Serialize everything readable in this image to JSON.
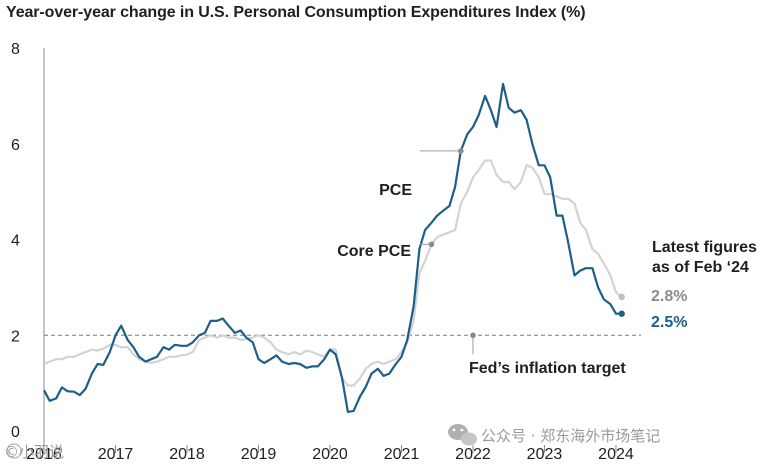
{
  "chart_data": {
    "type": "line",
    "title": "Year-over-year change in U.S. Personal Consumption Expenditures Index (%)",
    "xlabel": "",
    "ylabel": "",
    "ylim": [
      0,
      8
    ],
    "xlim": [
      2016.0,
      2024.35
    ],
    "y_ticks": [
      "0",
      "2",
      "4",
      "6",
      "8"
    ],
    "x_ticks": [
      "2016",
      "2017",
      "2018",
      "2019",
      "2020",
      "2021",
      "2022",
      "2023",
      "2024"
    ],
    "grid": false,
    "target": {
      "value": 2,
      "label": "Fed’s inflation target",
      "x_marker": 2022.0
    },
    "annotations": {
      "pce": "PCE",
      "core_pce": "Core PCE",
      "latest_line1": "Latest figures",
      "latest_line2": "as of Feb ‘24",
      "latest_pce": "2.5%",
      "latest_core": "2.8%"
    },
    "series": [
      {
        "name": "PCE",
        "color": "#1c5f8a",
        "x": [
          2016.0,
          2016.08,
          2016.17,
          2016.25,
          2016.33,
          2016.42,
          2016.5,
          2016.58,
          2016.67,
          2016.75,
          2016.83,
          2016.92,
          2017.0,
          2017.08,
          2017.17,
          2017.25,
          2017.33,
          2017.42,
          2017.5,
          2017.58,
          2017.67,
          2017.75,
          2017.83,
          2017.92,
          2018.0,
          2018.08,
          2018.17,
          2018.25,
          2018.33,
          2018.42,
          2018.5,
          2018.58,
          2018.67,
          2018.75,
          2018.83,
          2018.92,
          2019.0,
          2019.08,
          2019.17,
          2019.25,
          2019.33,
          2019.42,
          2019.5,
          2019.58,
          2019.67,
          2019.75,
          2019.83,
          2019.92,
          2020.0,
          2020.08,
          2020.17,
          2020.25,
          2020.33,
          2020.42,
          2020.5,
          2020.58,
          2020.67,
          2020.75,
          2020.83,
          2020.92,
          2021.0,
          2021.08,
          2021.17,
          2021.25,
          2021.33,
          2021.42,
          2021.5,
          2021.58,
          2021.67,
          2021.75,
          2021.83,
          2021.92,
          2022.0,
          2022.08,
          2022.17,
          2022.25,
          2022.33,
          2022.42,
          2022.5,
          2022.58,
          2022.67,
          2022.75,
          2022.83,
          2022.92,
          2023.0,
          2023.08,
          2023.17,
          2023.25,
          2023.33,
          2023.42,
          2023.5,
          2023.58,
          2023.67,
          2023.75,
          2023.83,
          2023.92,
          2024.0,
          2024.08
        ],
        "values": [
          0.85,
          0.63,
          0.68,
          0.91,
          0.83,
          0.82,
          0.75,
          0.88,
          1.2,
          1.4,
          1.38,
          1.65,
          2.0,
          2.2,
          1.9,
          1.75,
          1.55,
          1.45,
          1.5,
          1.55,
          1.75,
          1.7,
          1.8,
          1.78,
          1.78,
          1.85,
          2.0,
          2.05,
          2.3,
          2.3,
          2.35,
          2.2,
          2.05,
          2.1,
          1.95,
          1.85,
          1.5,
          1.42,
          1.5,
          1.58,
          1.45,
          1.4,
          1.42,
          1.4,
          1.32,
          1.35,
          1.35,
          1.5,
          1.7,
          1.6,
          1.1,
          0.4,
          0.42,
          0.72,
          0.92,
          1.2,
          1.3,
          1.15,
          1.2,
          1.4,
          1.55,
          1.9,
          2.6,
          3.8,
          4.2,
          4.35,
          4.5,
          4.6,
          4.7,
          5.1,
          5.85,
          6.2,
          6.35,
          6.6,
          7.0,
          6.7,
          6.35,
          7.25,
          6.75,
          6.65,
          6.7,
          6.5,
          6.0,
          5.55,
          5.55,
          5.3,
          4.5,
          4.5,
          3.95,
          3.25,
          3.35,
          3.4,
          3.4,
          3.0,
          2.75,
          2.65,
          2.45,
          2.45
        ]
      },
      {
        "name": "Core PCE",
        "color": "#d3d3d3",
        "x": [
          2016.0,
          2016.08,
          2016.17,
          2016.25,
          2016.33,
          2016.42,
          2016.5,
          2016.58,
          2016.67,
          2016.75,
          2016.83,
          2016.92,
          2017.0,
          2017.08,
          2017.17,
          2017.25,
          2017.33,
          2017.42,
          2017.5,
          2017.58,
          2017.67,
          2017.75,
          2017.83,
          2017.92,
          2018.0,
          2018.08,
          2018.17,
          2018.25,
          2018.33,
          2018.42,
          2018.5,
          2018.58,
          2018.67,
          2018.75,
          2018.83,
          2018.92,
          2019.0,
          2019.08,
          2019.17,
          2019.25,
          2019.33,
          2019.42,
          2019.5,
          2019.58,
          2019.67,
          2019.75,
          2019.83,
          2019.92,
          2020.0,
          2020.08,
          2020.17,
          2020.25,
          2020.33,
          2020.42,
          2020.5,
          2020.58,
          2020.67,
          2020.75,
          2020.83,
          2020.92,
          2021.0,
          2021.08,
          2021.17,
          2021.25,
          2021.33,
          2021.42,
          2021.5,
          2021.58,
          2021.67,
          2021.75,
          2021.83,
          2021.92,
          2022.0,
          2022.08,
          2022.17,
          2022.25,
          2022.33,
          2022.42,
          2022.5,
          2022.58,
          2022.67,
          2022.75,
          2022.83,
          2022.92,
          2023.0,
          2023.08,
          2023.17,
          2023.25,
          2023.33,
          2023.42,
          2023.5,
          2023.58,
          2023.67,
          2023.75,
          2023.83,
          2023.92,
          2024.0,
          2024.08
        ],
        "values": [
          1.4,
          1.45,
          1.5,
          1.5,
          1.55,
          1.55,
          1.6,
          1.65,
          1.7,
          1.68,
          1.72,
          1.8,
          1.8,
          1.75,
          1.75,
          1.6,
          1.5,
          1.45,
          1.42,
          1.45,
          1.5,
          1.55,
          1.55,
          1.58,
          1.6,
          1.65,
          1.9,
          1.95,
          2.0,
          1.95,
          2.0,
          1.95,
          1.95,
          1.9,
          1.92,
          1.95,
          2.0,
          1.95,
          1.85,
          1.7,
          1.65,
          1.6,
          1.65,
          1.6,
          1.68,
          1.65,
          1.6,
          1.55,
          1.7,
          1.7,
          1.1,
          0.95,
          0.95,
          1.1,
          1.3,
          1.4,
          1.45,
          1.4,
          1.45,
          1.5,
          1.65,
          1.85,
          2.3,
          3.3,
          3.55,
          3.9,
          4.05,
          4.1,
          4.15,
          4.2,
          4.75,
          5.0,
          5.3,
          5.45,
          5.65,
          5.65,
          5.35,
          5.2,
          5.2,
          5.05,
          5.2,
          5.55,
          5.5,
          5.3,
          4.95,
          4.95,
          4.9,
          4.85,
          4.85,
          4.75,
          4.35,
          4.2,
          3.8,
          3.7,
          3.5,
          3.25,
          2.9,
          2.8
        ]
      }
    ]
  },
  "watermark": {
    "left_text": "©小羽说",
    "right_text": "公众号 · 郑东海外市场笔记"
  }
}
